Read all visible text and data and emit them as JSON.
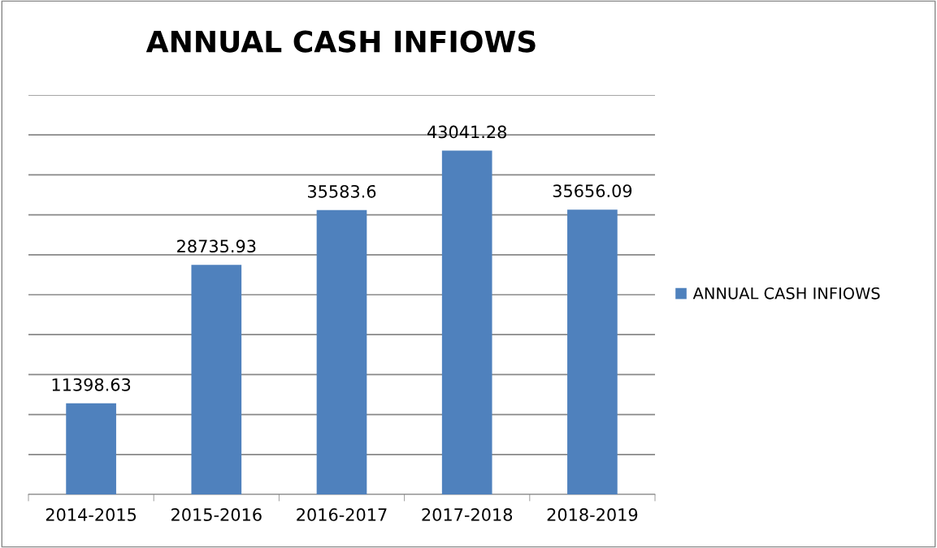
{
  "chart_data": {
    "type": "bar",
    "title": "ANNUAL CASH INFIOWS",
    "categories": [
      "2014-2015",
      "2015-2016",
      "2016-2017",
      "2017-2018",
      "2018-2019"
    ],
    "series": [
      {
        "name": "ANNUAL CASH INFIOWS",
        "color": "#4f81bd",
        "values": [
          11398.63,
          28735.93,
          35583.6,
          43041.28,
          35656.09
        ]
      }
    ],
    "ylim": [
      0,
      50000
    ],
    "yticks": [
      {
        "value": 0,
        "label": null
      },
      {
        "value": 5000,
        "label": null
      },
      {
        "value": 10000,
        "label": null
      },
      {
        "value": 15000,
        "label": null
      },
      {
        "value": 20000,
        "label": null
      },
      {
        "value": 25000,
        "label": null
      },
      {
        "value": 30000,
        "label": null
      },
      {
        "value": 35000,
        "label": null
      },
      {
        "value": 40000,
        "label": null
      },
      {
        "value": 45000,
        "label": null
      },
      {
        "value": 50000,
        "label": null
      }
    ],
    "tick_labels": "x",
    "grid": "y",
    "legend": "right",
    "data_labels": true
  }
}
